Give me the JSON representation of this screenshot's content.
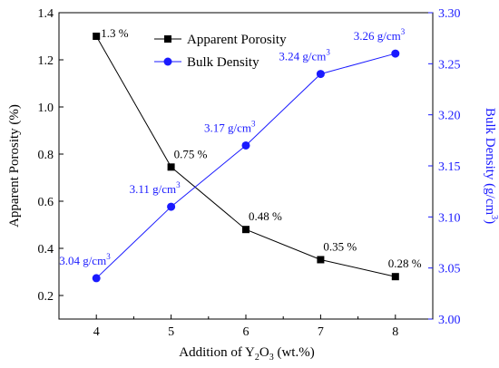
{
  "chart_data": {
    "type": "line",
    "xlabel": "Addition of Y₂O₃ (wt.%)",
    "xlabel_parts": {
      "prefix": "Addition of Y",
      "sub1": "2",
      "mid": "O",
      "sub2": "3",
      "suffix": " (wt.%)"
    },
    "ylabel": "Apparent Porosity (%)",
    "y2label": "Bulk Density (g/cm³)",
    "y2label_parts": {
      "main": "Bulk Density (g/cm",
      "sup": "3",
      "end": ")"
    },
    "x": [
      4,
      5,
      6,
      7,
      8
    ],
    "xlim": [
      3.5,
      8.5
    ],
    "ylim": [
      0.1,
      1.4
    ],
    "y2lim": [
      3.0,
      3.3
    ],
    "x_ticks": [
      "4",
      "5",
      "6",
      "7",
      "8"
    ],
    "y_ticks": [
      "0.2",
      "0.4",
      "0.6",
      "0.8",
      "1.0",
      "1.2",
      "1.4"
    ],
    "y2_ticks": [
      "3.00",
      "3.05",
      "3.10",
      "3.15",
      "3.20",
      "3.25",
      "3.30"
    ],
    "legend_position": "top-center",
    "grid": false,
    "series": [
      {
        "name": "Apparent Porosity",
        "axis": "left",
        "color": "#000000",
        "marker": "square",
        "values": [
          1.3,
          0.745,
          0.48,
          0.352,
          0.28
        ],
        "labels": [
          "1.3 %",
          "0.75 %",
          "0.48 %",
          "0.35 %",
          "0.28 %"
        ]
      },
      {
        "name": "Bulk Density",
        "axis": "right",
        "color": "#1a1aff",
        "marker": "circle",
        "values": [
          3.04,
          3.11,
          3.17,
          3.24,
          3.26
        ],
        "labels_main": [
          "3.04 g/cm",
          "3.11 g/cm",
          "3.17 g/cm",
          "3.24 g/cm",
          "3.26 g/cm"
        ],
        "labels_sup": "3"
      }
    ]
  }
}
